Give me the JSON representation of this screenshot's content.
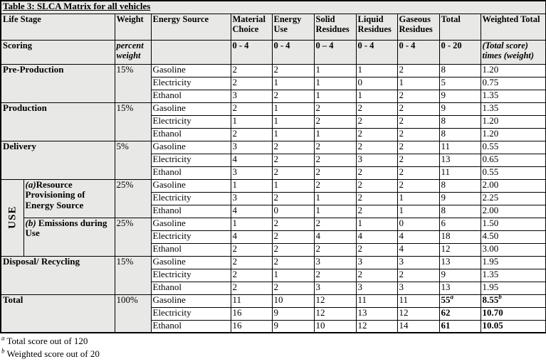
{
  "title": "Table 3: SLCA Matrix for all vehicles",
  "header": {
    "life_stage": "Life Stage",
    "weight": "Weight",
    "energy_source": "Energy Source",
    "material_choice": "Material Choice",
    "energy_use": "Energy Use",
    "solid_residues": "Solid Residues",
    "liquid_residues": "Liquid Residues",
    "gaseous_residues": "Gaseous Residues",
    "total": "Total",
    "weighted_total": "Weighted Total"
  },
  "scoring": {
    "label": "Scoring",
    "weight": "percent weight",
    "ranges": [
      "0 - 4",
      "0 - 4",
      "0 – 4",
      "0 - 4",
      "0 - 4",
      "0 - 20"
    ],
    "weighted_line1": "(Total score)",
    "weighted_line2": "times (weight)"
  },
  "use_label": "USE",
  "groups": [
    {
      "label": "Pre-Production",
      "weight": "15%",
      "rows": [
        {
          "source": "Gasoline",
          "values": [
            "2",
            "2",
            "1",
            "1",
            "2"
          ],
          "total": "8",
          "weighted": "1.20"
        },
        {
          "source": "Electricity",
          "values": [
            "2",
            "1",
            "1",
            "0",
            "1"
          ],
          "total": "5",
          "weighted": "0.75"
        },
        {
          "source": "Ethanol",
          "values": [
            "3",
            "2",
            "1",
            "1",
            "2"
          ],
          "total": "9",
          "weighted": "1.35"
        }
      ]
    },
    {
      "label": "Production",
      "weight": "15%",
      "rows": [
        {
          "source": "Gasoline",
          "values": [
            "2",
            "1",
            "2",
            "2",
            "2"
          ],
          "total": "9",
          "weighted": "1.35"
        },
        {
          "source": "Electricity",
          "values": [
            "1",
            "1",
            "2",
            "2",
            "2"
          ],
          "total": "8",
          "weighted": "1.20"
        },
        {
          "source": "Ethanol",
          "values": [
            "2",
            "1",
            "1",
            "2",
            "2"
          ],
          "total": "8",
          "weighted": "1.20"
        }
      ]
    },
    {
      "label": "Delivery",
      "weight": "5%",
      "rows": [
        {
          "source": "Gasoline",
          "values": [
            "3",
            "2",
            "2",
            "2",
            "2"
          ],
          "total": "11",
          "weighted": "0.55"
        },
        {
          "source": "Electricity",
          "values": [
            "4",
            "2",
            "2",
            "3",
            "2"
          ],
          "total": "13",
          "weighted": "0.65"
        },
        {
          "source": "Ethanol",
          "values": [
            "3",
            "2",
            "2",
            "2",
            "2"
          ],
          "total": "11",
          "weighted": "0.55"
        }
      ]
    },
    {
      "use_section": true,
      "use_first": true,
      "label_prefix": "(a)",
      "label": "Resource Provisioning of Energy Source",
      "weight": "25%",
      "rows": [
        {
          "source": "Gasoline",
          "values": [
            "1",
            "1",
            "2",
            "2",
            "2"
          ],
          "total": "8",
          "weighted": "2.00"
        },
        {
          "source": "Electricity",
          "values": [
            "3",
            "2",
            "1",
            "2",
            "1"
          ],
          "total": "9",
          "weighted": "2.25"
        },
        {
          "source": "Ethanol",
          "values": [
            "4",
            "0",
            "1",
            "2",
            "1"
          ],
          "total": "8",
          "weighted": "2.00"
        }
      ]
    },
    {
      "use_section": true,
      "label_prefix": "(b) ",
      "label": "Emissions during Use",
      "weight": "25%",
      "rows": [
        {
          "source": "Gasoline",
          "values": [
            "1",
            "2",
            "2",
            "1",
            "0"
          ],
          "total": "6",
          "weighted": "1.50"
        },
        {
          "source": "Electricity",
          "values": [
            "4",
            "2",
            "4",
            "4",
            "4"
          ],
          "total": "18",
          "weighted": "4.50"
        },
        {
          "source": "Ethanol",
          "values": [
            "2",
            "2",
            "2",
            "2",
            "4"
          ],
          "total": "12",
          "weighted": "3.00"
        }
      ]
    },
    {
      "label": "Disposal/ Recycling",
      "weight": "15%",
      "rows": [
        {
          "source": "Gasoline",
          "values": [
            "2",
            "2",
            "3",
            "3",
            "3"
          ],
          "total": "13",
          "weighted": "1.95"
        },
        {
          "source": "Electricity",
          "values": [
            "2",
            "1",
            "2",
            "2",
            "2"
          ],
          "total": "9",
          "weighted": "1.35"
        },
        {
          "source": "Ethanol",
          "values": [
            "2",
            "2",
            "3",
            "3",
            "3"
          ],
          "total": "13",
          "weighted": "1.95"
        }
      ]
    },
    {
      "label": "Total",
      "weight": "100%",
      "bold_totals": true,
      "rows": [
        {
          "source": "Gasoline",
          "values": [
            "11",
            "10",
            "12",
            "11",
            "11"
          ],
          "total": "55",
          "total_sup": "a",
          "weighted": "8.55",
          "weighted_sup": "b"
        },
        {
          "source": "Electricity",
          "values": [
            "16",
            "9",
            "12",
            "13",
            "12"
          ],
          "total": "62",
          "weighted": "10.70"
        },
        {
          "source": "Ethanol",
          "values": [
            "16",
            "9",
            "10",
            "12",
            "14"
          ],
          "total": "61",
          "weighted": "10.05"
        }
      ]
    }
  ],
  "footnotes": [
    {
      "sup": "a",
      "text": "Total score out of 120"
    },
    {
      "sup": "b",
      "text": "Weighted score out of 20"
    }
  ],
  "colors": {
    "header_bg": "#e8e8e6",
    "border": "#000000"
  }
}
